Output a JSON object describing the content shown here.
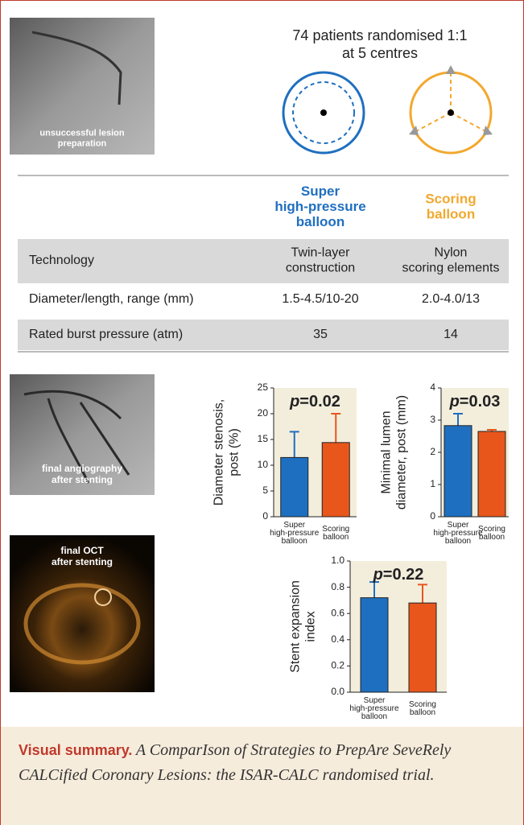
{
  "header": {
    "image_label": [
      "unsuccessful lesion",
      "preparation"
    ],
    "enrollment": [
      "74 patients randomised 1:1",
      "at 5 centres"
    ]
  },
  "table": {
    "columns": [
      [
        "Super",
        "high-pressure",
        "balloon"
      ],
      [
        "Scoring",
        "balloon"
      ]
    ],
    "rows": [
      [
        [
          "Technology"
        ],
        [
          "Twin-layer",
          "construction"
        ],
        [
          "Nylon",
          "scoring elements"
        ]
      ],
      [
        [
          "Diameter/length, range (mm)"
        ],
        [
          "1.5-4.5/10-20"
        ],
        [
          "2.0-4.0/13"
        ]
      ],
      [
        [
          "Rated burst pressure (atm)"
        ],
        [
          "35"
        ],
        [
          "14"
        ]
      ]
    ]
  },
  "images": [
    {
      "label": [
        "final angiography",
        "after stenting"
      ]
    },
    {
      "label": [
        "final OCT",
        "after stenting"
      ]
    }
  ],
  "chart_data": [
    {
      "type": "bar",
      "y_label": "Diameter stenosis, post (%)",
      "annotation": "p=0.02",
      "categories": [
        "Super high-pressure balloon",
        "Scoring balloon"
      ],
      "values": [
        11.5,
        14.4
      ],
      "errors": [
        5.0,
        5.6
      ],
      "colors": [
        "#1f6fc0",
        "#e8561c"
      ],
      "ylim": [
        0,
        25
      ],
      "yticks": [
        0,
        5,
        10,
        15,
        20,
        25
      ]
    },
    {
      "type": "bar",
      "y_label": "Minimal lumen diameter, post (mm)",
      "annotation": "p=0.03",
      "categories": [
        "Super high-pressure balloon",
        "Scoring balloon"
      ],
      "values": [
        2.83,
        2.65
      ],
      "errors": [
        0.37,
        0.05
      ],
      "colors": [
        "#1f6fc0",
        "#e8561c"
      ],
      "ylim": [
        0,
        4
      ],
      "yticks": [
        0,
        1,
        2,
        3,
        4
      ]
    },
    {
      "type": "bar",
      "y_label": "Stent expansion index",
      "annotation": "p=0.22",
      "categories": [
        "Super high-pressure balloon",
        "Scoring balloon"
      ],
      "values": [
        0.72,
        0.68
      ],
      "errors": [
        0.12,
        0.14
      ],
      "colors": [
        "#1f6fc0",
        "#e8561c"
      ],
      "ylim": [
        0,
        1
      ],
      "yticks": [
        {
          "value": 0,
          "label": "0.0"
        },
        0.2,
        0.4,
        0.6,
        0.8,
        {
          "value": 1,
          "label": "1.0"
        }
      ]
    }
  ],
  "caption": {
    "title": "Visual summary.",
    "text": "A ComparIson of Strategies to PrepAre SeveRely CALCified Coronary Lesions: the ISAR-CALC randomised trial."
  }
}
